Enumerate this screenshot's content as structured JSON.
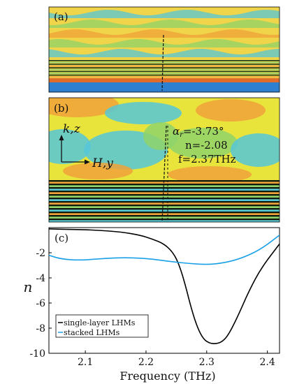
{
  "panels": {
    "a": {
      "label": "(a)"
    },
    "b": {
      "label": "(b)",
      "axis_k": "k,z",
      "axis_h": "H,y",
      "annotation_angle": "α",
      "annotation_angle_sub": "r",
      "annotation_angle_value": "=-3.73°",
      "annotation_n": "n=-2.08",
      "annotation_f": "f=2.37THz"
    }
  },
  "colors": {
    "field_blue": "#2f7fd0",
    "field_cyan": "#56c7d8",
    "field_green": "#8fd36a",
    "field_yellow": "#e7e33a",
    "field_orange": "#f0a23a",
    "single_layer": "#000000",
    "stacked": "#1aa0e6"
  },
  "chart_data": {
    "type": "line",
    "label": "(c)",
    "xlabel": "Frequency (THz)",
    "ylabel": "n",
    "xlim": [
      2.04,
      2.42
    ],
    "ylim": [
      -10,
      0
    ],
    "xticks": [
      "2.1",
      "2.2",
      "2.3",
      "2.4"
    ],
    "yticks": [
      "-2",
      "-4",
      "-6",
      "-8",
      "-10"
    ],
    "legend_position": "bottom-left",
    "series": [
      {
        "name": "single-layer LHMs",
        "color": "#000000",
        "x": [
          2.04,
          2.08,
          2.12,
          2.16,
          2.19,
          2.21,
          2.23,
          2.245,
          2.255,
          2.265,
          2.275,
          2.285,
          2.295,
          2.305,
          2.315,
          2.325,
          2.335,
          2.35,
          2.37,
          2.39,
          2.42
        ],
        "y": [
          -0.1,
          -0.15,
          -0.2,
          -0.35,
          -0.6,
          -0.9,
          -1.3,
          -2.0,
          -3.0,
          -4.6,
          -6.5,
          -8.0,
          -8.9,
          -9.2,
          -9.25,
          -9.1,
          -8.6,
          -7.2,
          -5.0,
          -3.2,
          -1.3
        ]
      },
      {
        "name": "stacked LHMs",
        "color": "#1aa0e6",
        "x": [
          2.04,
          2.06,
          2.09,
          2.12,
          2.15,
          2.18,
          2.21,
          2.24,
          2.27,
          2.3,
          2.33,
          2.36,
          2.39,
          2.42
        ],
        "y": [
          -2.2,
          -2.5,
          -2.6,
          -2.5,
          -2.4,
          -2.4,
          -2.5,
          -2.7,
          -2.85,
          -2.95,
          -2.8,
          -2.4,
          -1.7,
          -0.6
        ]
      }
    ]
  }
}
